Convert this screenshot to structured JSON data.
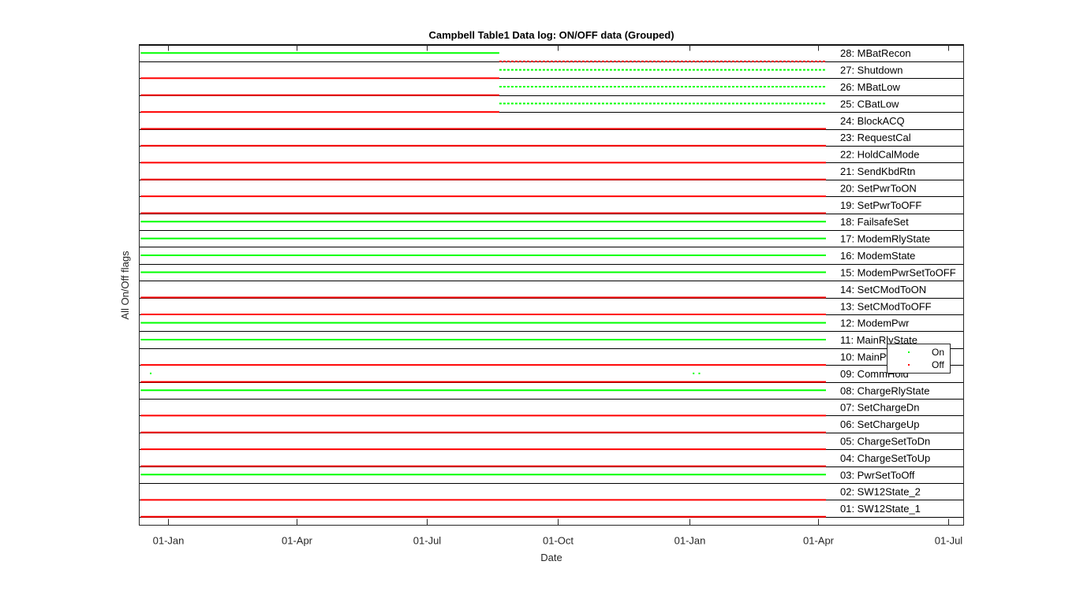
{
  "chart_data": {
    "type": "scatter",
    "title": "Campbell Table1 Data log: ON/OFF data (Grouped)",
    "xlabel": "Date",
    "ylabel": "All On/Off flags",
    "xlim": [
      "2016-12-12",
      "2018-07-12"
    ],
    "ylim": [
      0,
      28.5
    ],
    "x_ticks": [
      {
        "date": "2017-01-01",
        "label": "01-Jan"
      },
      {
        "date": "2017-04-01",
        "label": "01-Apr"
      },
      {
        "date": "2017-07-01",
        "label": "01-Jul"
      },
      {
        "date": "2017-10-01",
        "label": "01-Oct"
      },
      {
        "date": "2018-01-01",
        "label": "01-Jan"
      },
      {
        "date": "2018-04-01",
        "label": "01-Apr"
      },
      {
        "date": "2018-07-01",
        "label": "01-Jul"
      }
    ],
    "legend": {
      "placement": "right",
      "entries": [
        {
          "name": "On",
          "color": "#00ff00"
        },
        {
          "name": "Off",
          "color": "#ff0000"
        }
      ]
    },
    "colors": {
      "on": "#00ff00",
      "off": "#ff0000"
    },
    "data_range": [
      "2016-12-13",
      "2018-04-10"
    ],
    "flags": [
      {
        "label": "01: SW12State_1",
        "state": "off"
      },
      {
        "label": "02: SW12State_2",
        "state": "off"
      },
      {
        "label": "03: PwrSetToOff",
        "state": "on"
      },
      {
        "label": "04: ChargeSetToUp",
        "state": "off"
      },
      {
        "label": "05: ChargeSetToDn",
        "state": "off"
      },
      {
        "label": "06: SetChargeUp",
        "state": "off"
      },
      {
        "label": "07: SetChargeDn",
        "state": "off"
      },
      {
        "label": "08: ChargeRlyState",
        "state": "on"
      },
      {
        "label": "09: CommHold",
        "state": "off",
        "on_points": [
          "2016-12-20",
          "2018-01-04",
          "2018-01-08"
        ]
      },
      {
        "label": "10: MainPwr",
        "state": "off"
      },
      {
        "label": "11: MainRlyState",
        "state": "on"
      },
      {
        "label": "12: ModemPwr",
        "state": "on"
      },
      {
        "label": "13: SetCModToOFF",
        "state": "off"
      },
      {
        "label": "14: SetCModToON",
        "state": "off"
      },
      {
        "label": "15: ModemPwrSetToOFF",
        "state": "on"
      },
      {
        "label": "16: ModemState",
        "state": "on"
      },
      {
        "label": "17: ModemRlyState",
        "state": "on"
      },
      {
        "label": "18: FailsafeSet",
        "state": "on"
      },
      {
        "label": "19: SetPwrToOFF",
        "state": "off"
      },
      {
        "label": "20: SetPwrToON",
        "state": "off"
      },
      {
        "label": "21: SendKbdRtn",
        "state": "off"
      },
      {
        "label": "22: HoldCalMode",
        "state": "off"
      },
      {
        "label": "23: RequestCal",
        "state": "off"
      },
      {
        "label": "24: BlockACQ",
        "state": "off"
      },
      {
        "label": "25: CBatLow",
        "state": "off",
        "segment_from": "2017-08-21",
        "segment_state": "on"
      },
      {
        "label": "26: MBatLow",
        "state": "off",
        "segment_from": "2017-08-21",
        "segment_state": "on"
      },
      {
        "label": "27: Shutdown",
        "state": "off",
        "segment_from": "2017-08-21",
        "segment_state": "on"
      },
      {
        "label": "28: MBatRecon",
        "state": "on",
        "segment_from": "2017-08-21",
        "segment_state": "off"
      }
    ]
  }
}
